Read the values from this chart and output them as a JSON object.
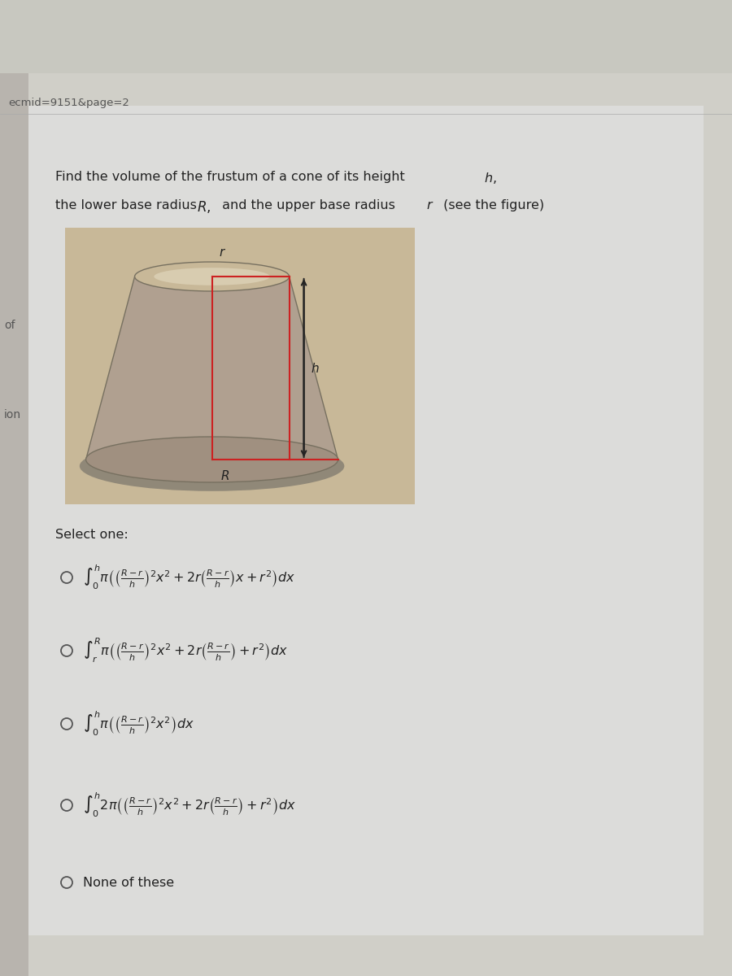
{
  "bg_top_color": "#1a1a1a",
  "bg_main_color": "#c8c8c0",
  "card_color": "#dcdcda",
  "url_text": "ecmid=9151&page=2",
  "q_line1": "Find the volume of the frustum of a cone of its height ",
  "q_line1_italic": "h,",
  "q_line2a": "the lower base radius ",
  "q_line2b": "R,",
  "q_line2c": " and the upper base radius ",
  "q_line2d": "r",
  "q_line2e": " (see the figure)",
  "select_one": "Select one:",
  "label_of": "of",
  "label_ion": "ion",
  "opt1": "$\\int_0^h \\pi\\left(\\left(\\frac{R-r}{h}\\right)^2x^2 + 2r\\left(\\frac{R-r}{h}\\right)x + r^2\\right)dx$",
  "opt2": "$\\int_r^R \\pi\\left(\\left(\\frac{R-r}{h}\\right)^2x^2 + 2r\\left(\\frac{R-r}{h}\\right) + r^2\\right)dx$",
  "opt3": "$\\int_0^h \\pi\\left(\\left(\\frac{R-r}{h}\\right)^2x^2\\right)dx$",
  "opt4": "$\\int_0^h 2\\pi\\left(\\left(\\frac{R-r}{h}\\right)^2x^2 + 2r\\left(\\frac{R-r}{h}\\right) + r^2\\right)dx$",
  "opt5": "None of these",
  "frustum_body_color": "#b0a090",
  "frustum_top_color": "#c8b898",
  "frustum_shadow_color": "#908070",
  "frustum_bottom_color": "#a09080",
  "frustum_bg_color": "#c8b898",
  "rect_color": "#cc2222"
}
